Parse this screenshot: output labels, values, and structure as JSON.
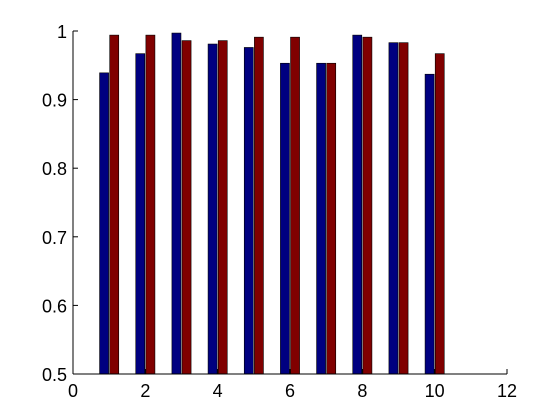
{
  "chart_data": {
    "type": "bar",
    "x": [
      1,
      2,
      3,
      4,
      5,
      6,
      7,
      8,
      9,
      10
    ],
    "series": [
      {
        "color": "#000080",
        "values": [
          0.939,
          0.967,
          0.997,
          0.981,
          0.976,
          0.953,
          0.953,
          0.994,
          0.983,
          0.937
        ]
      },
      {
        "color": "#800000",
        "values": [
          0.994,
          0.994,
          0.986,
          0.986,
          0.991,
          0.991,
          0.953,
          0.991,
          0.983,
          0.967
        ]
      }
    ],
    "xlim": [
      0,
      12
    ],
    "ylim": [
      0.5,
      1
    ],
    "xticks": [
      0,
      2,
      4,
      6,
      8,
      10,
      12
    ],
    "yticks": [
      0.5,
      0.6,
      0.7,
      0.8,
      0.9,
      1
    ],
    "xtick_labels": [
      "0",
      "2",
      "4",
      "6",
      "8",
      "10",
      "12"
    ],
    "ytick_labels": [
      "0.5",
      "0.6",
      "0.7",
      "0.8",
      "0.9",
      "1"
    ],
    "grid": false,
    "legend": "none",
    "title": "",
    "xlabel": "",
    "ylabel": ""
  }
}
